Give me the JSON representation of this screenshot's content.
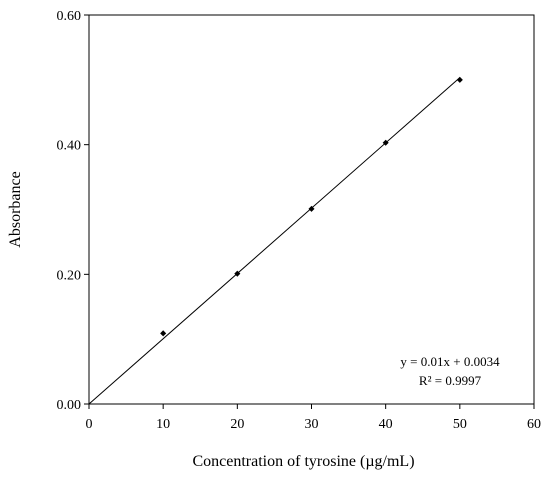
{
  "chart_data": {
    "type": "scatter",
    "title": "",
    "xlabel": "Concentration of tyrosine (µg/mL)",
    "ylabel": "Absorbance",
    "xlim": [
      0,
      60
    ],
    "ylim": [
      0,
      0.6
    ],
    "x_ticks": [
      "0",
      "10",
      "20",
      "30",
      "40",
      "50",
      "60"
    ],
    "y_ticks": [
      "0.00",
      "0.20",
      "0.40",
      "0.60"
    ],
    "grid": false,
    "legend": "none",
    "series": [
      {
        "marker": "diamond",
        "color": "#000000",
        "points": [
          {
            "x": 10,
            "y": 0.109
          },
          {
            "x": 20,
            "y": 0.201
          },
          {
            "x": 30,
            "y": 0.301
          },
          {
            "x": 40,
            "y": 0.403
          },
          {
            "x": 50,
            "y": 0.5
          }
        ]
      }
    ],
    "trendline": {
      "type": "linear",
      "slope": 0.01,
      "intercept": 0.0034,
      "x_range": [
        0,
        50
      ],
      "equation_text": "y = 0.01x  + 0.0034",
      "r2_text": "R² = 0.9997"
    }
  }
}
